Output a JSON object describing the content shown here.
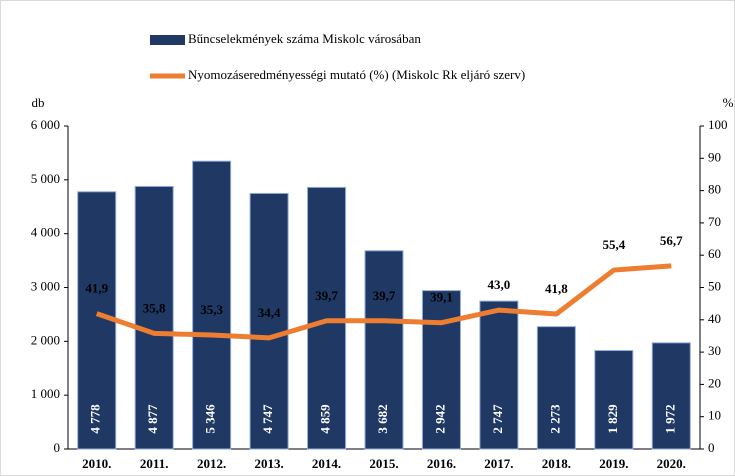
{
  "chart_data": {
    "type": "bar",
    "categories": [
      "2010.",
      "2011.",
      "2012.",
      "2013.",
      "2014.",
      "2015.",
      "2016.",
      "2017.",
      "2018.",
      "2019.",
      "2020."
    ],
    "series": [
      {
        "name": "Bűncselekmények száma Miskolc városában",
        "type": "bar",
        "color": "#1f3864",
        "values": [
          4778,
          4877,
          5346,
          4747,
          4859,
          3682,
          2942,
          2747,
          2273,
          1829,
          1972
        ],
        "value_labels": [
          "4 778",
          "4 877",
          "5 346",
          "4 747",
          "4 859",
          "3 682",
          "2 942",
          "2 747",
          "2 273",
          "1 829",
          "1 972"
        ]
      },
      {
        "name": "Nyomozáseredményességi mutató (%) (Miskolc Rk eljáró szerv)",
        "type": "line",
        "color": "#ed7d31",
        "axis": "y2",
        "values": [
          41.9,
          35.8,
          35.3,
          34.4,
          39.7,
          39.7,
          39.1,
          43.0,
          41.8,
          55.4,
          56.7
        ],
        "value_labels": [
          "41,9",
          "35,8",
          "35,3",
          "34,4",
          "39,7",
          "39,7",
          "39,1",
          "43,0",
          "41,8",
          "55,4",
          "56,7"
        ]
      }
    ],
    "ylabel": "db",
    "y2label": "%",
    "ylim": [
      0,
      6000
    ],
    "yticks": [
      0,
      {
        "value": 1000,
        "label": "1 000"
      },
      {
        "value": 2000,
        "label": "2 000"
      },
      {
        "value": 3000,
        "label": "3 000"
      },
      {
        "value": 4000,
        "label": "4 000"
      },
      {
        "value": 5000,
        "label": "5 000"
      },
      {
        "value": 6000,
        "label": "6 000"
      }
    ],
    "y2lim": [
      0,
      100
    ],
    "y2ticks": [
      0,
      10,
      20,
      30,
      40,
      50,
      60,
      70,
      80,
      90,
      100
    ]
  }
}
